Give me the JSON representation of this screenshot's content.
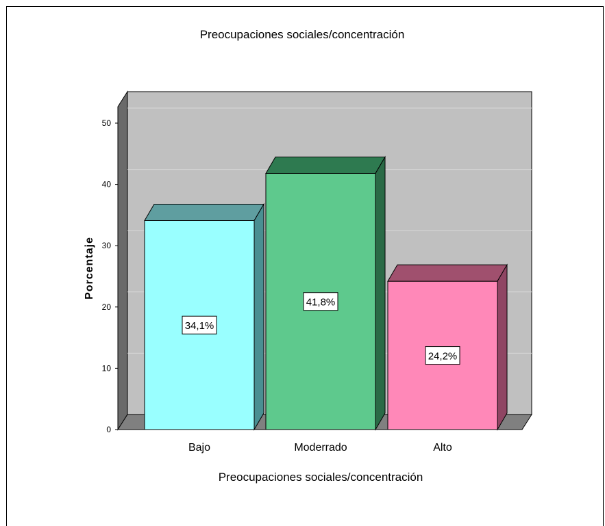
{
  "chart_data": {
    "type": "bar",
    "title": "Preocupaciones sociales/concentración",
    "xlabel": "Preocupaciones sociales/concentración",
    "ylabel": "Porcentaje",
    "categories": [
      "Bajo",
      "Moderrado",
      "Alto"
    ],
    "values": [
      34.1,
      41.8,
      24.2
    ],
    "data_labels": [
      "34,1%",
      "41,8%",
      "24,2%"
    ],
    "ylim": [
      0,
      50
    ],
    "yticks": [
      "0",
      "10",
      "20",
      "30",
      "40",
      "50"
    ],
    "grid": true,
    "three_d": true,
    "colors": {
      "bar_fronts": [
        "#99ffff",
        "#5ec98d",
        "#ff88b8"
      ],
      "bar_tops": [
        "#5f9ea0",
        "#2e7a50",
        "#a0506e"
      ],
      "bar_sides": [
        "#4a8f92",
        "#2a6a46",
        "#8f4563"
      ],
      "wall": "#c0c0c0",
      "floor": "#808080",
      "side_wall": "#6a6a6a"
    }
  }
}
